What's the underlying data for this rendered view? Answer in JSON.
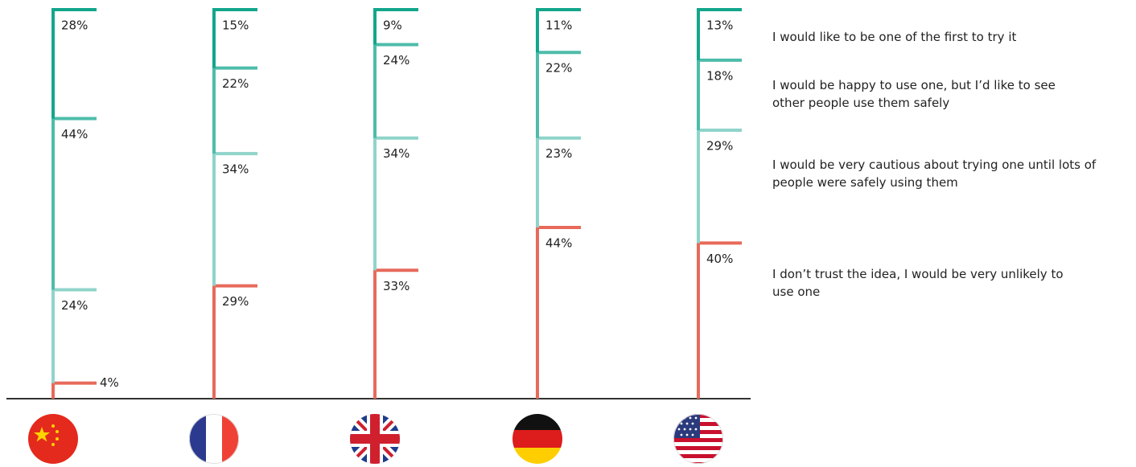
{
  "chart_data": {
    "type": "stacked-bracket",
    "categories": [
      null,
      null,
      null,
      null,
      null
    ],
    "ylim": [
      0,
      100
    ],
    "series": [
      {
        "name": "I would like to be one of the first to try it",
        "color": "#13a68c",
        "values": [
          28,
          15,
          9,
          11,
          13
        ],
        "value_labels": [
          "28%",
          "15%",
          "9%",
          "11%",
          "13%"
        ]
      },
      {
        "name": "I would be happy to use one, but I’d like to see other people use them safely",
        "color": "#4dbcaa",
        "values": [
          44,
          22,
          24,
          22,
          18
        ],
        "value_labels": [
          "44%",
          "22%",
          "24%",
          "22%",
          "18%"
        ]
      },
      {
        "name": "I would be very cautious about trying one until lots of people were safely using them",
        "color": "#8fd4ca",
        "values": [
          24,
          34,
          34,
          23,
          29
        ],
        "value_labels": [
          "24%",
          "34%",
          "34%",
          "23%",
          "29%"
        ]
      },
      {
        "name": "I don’t trust the idea, I would be very unlikely to use one",
        "color": "#e76a5b",
        "values": [
          4,
          29,
          33,
          44,
          40
        ],
        "value_labels": [
          "4%",
          "29%",
          "33%",
          "44%",
          "40%"
        ]
      }
    ]
  }
}
